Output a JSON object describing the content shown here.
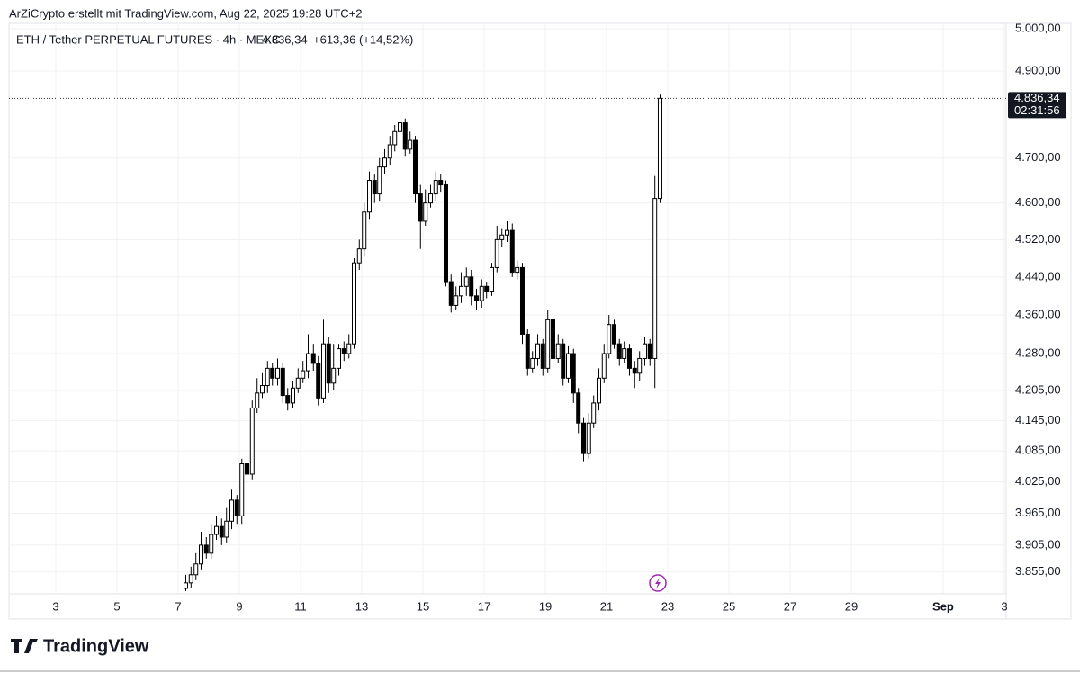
{
  "header": {
    "caption": "ArZiCrypto erstellt mit TradingView.com, Aug 22, 2025 19:28 UTC+2",
    "logo": "TradingView"
  },
  "chart_data": {
    "type": "candlestick",
    "symbol": "ETH / Tether PERPETUAL FUTURES · 4h · MEXC",
    "price_text": "4.836,34",
    "change_text": "+613,36 (+14,52%)",
    "last_price": {
      "value": 4836.34,
      "label": "4.836,34"
    },
    "countdown": "02:31:56",
    "log_scale": true,
    "grid": true,
    "up_color": "#ffffff",
    "down_color": "#000000",
    "border_color": "#000000",
    "xlim": [
      1.47,
      34.06
    ],
    "xticks": [
      3,
      5,
      7,
      9,
      11,
      13,
      15,
      17,
      19,
      21,
      23,
      25,
      27,
      29,
      {
        "value": 32,
        "label": "Sep"
      },
      {
        "value": 34,
        "label": "3"
      }
    ],
    "ylim": [
      3815,
      5011
    ],
    "yticks": [
      {
        "value": 3855,
        "label": "3.855,00"
      },
      {
        "value": 3905,
        "label": "3.905,00"
      },
      {
        "value": 3965,
        "label": "3.965,00"
      },
      {
        "value": 4025,
        "label": "4.025,00"
      },
      {
        "value": 4085,
        "label": "4.085,00"
      },
      {
        "value": 4145,
        "label": "4.145,00"
      },
      {
        "value": 4205,
        "label": "4.205,00"
      },
      {
        "value": 4280,
        "label": "4.280,00"
      },
      {
        "value": 4360,
        "label": "4.360,00"
      },
      {
        "value": 4440,
        "label": "4.440,00"
      },
      {
        "value": 4520,
        "label": "4.520,00"
      },
      {
        "value": 4600,
        "label": "4.600,00"
      },
      {
        "value": 4700,
        "label": "4.700,00"
      },
      {
        "value": 4900,
        "label": "4.900,00"
      },
      {
        "value": 5000,
        "label": "5.000,00"
      }
    ],
    "x": [
      7.25,
      7.42,
      7.58,
      7.75,
      7.92,
      8.08,
      8.25,
      8.42,
      8.58,
      8.75,
      8.92,
      9.08,
      9.25,
      9.42,
      9.58,
      9.75,
      9.92,
      10.08,
      10.25,
      10.42,
      10.58,
      10.75,
      10.92,
      11.08,
      11.25,
      11.42,
      11.58,
      11.75,
      11.92,
      12.08,
      12.25,
      12.42,
      12.58,
      12.75,
      12.92,
      13.08,
      13.25,
      13.42,
      13.58,
      13.75,
      13.92,
      14.08,
      14.25,
      14.42,
      14.58,
      14.75,
      14.92,
      15.08,
      15.25,
      15.42,
      15.58,
      15.75,
      15.92,
      16.08,
      16.25,
      16.42,
      16.58,
      16.75,
      16.92,
      17.08,
      17.25,
      17.42,
      17.58,
      17.75,
      17.92,
      18.08,
      18.25,
      18.42,
      18.58,
      18.75,
      18.92,
      19.08,
      19.25,
      19.42,
      19.58,
      19.75,
      19.92,
      20.08,
      20.25,
      20.42,
      20.58,
      20.75,
      20.92,
      21.08,
      21.25,
      21.42,
      21.58,
      21.75,
      21.92,
      22.08,
      22.25,
      22.42,
      22.58,
      22.75
    ],
    "open": [
      3825,
      3835,
      3850,
      3870,
      3905,
      3890,
      3925,
      3940,
      3920,
      3950,
      3990,
      3960,
      4060,
      4040,
      4170,
      4200,
      4215,
      4250,
      4230,
      4250,
      4195,
      4180,
      4210,
      4230,
      4245,
      4280,
      4260,
      4190,
      4300,
      4220,
      4250,
      4290,
      4280,
      4300,
      4470,
      4500,
      4580,
      4650,
      4620,
      4680,
      4700,
      4730,
      4760,
      4780,
      4720,
      4740,
      4620,
      4560,
      4600,
      4620,
      4650,
      4640,
      4430,
      4380,
      4400,
      4420,
      4440,
      4400,
      4390,
      4420,
      4410,
      4460,
      4520,
      4530,
      4540,
      4450,
      4460,
      4320,
      4250,
      4270,
      4300,
      4250,
      4350,
      4270,
      4300,
      4230,
      4280,
      4200,
      4140,
      4080,
      4140,
      4180,
      4230,
      4280,
      4340,
      4300,
      4270,
      4290,
      4250,
      4240,
      4270,
      4300,
      4270,
      4610
    ],
    "high": [
      3850,
      3865,
      3890,
      3930,
      3920,
      3945,
      3960,
      3955,
      3975,
      4010,
      4000,
      4070,
      4075,
      4185,
      4230,
      4240,
      4265,
      4260,
      4270,
      4260,
      4210,
      4225,
      4250,
      4265,
      4320,
      4300,
      4275,
      4350,
      4315,
      4300,
      4300,
      4305,
      4320,
      4480,
      4520,
      4600,
      4670,
      4665,
      4700,
      4720,
      4750,
      4775,
      4795,
      4790,
      4760,
      4750,
      4640,
      4630,
      4640,
      4670,
      4665,
      4650,
      4445,
      4420,
      4450,
      4460,
      4455,
      4415,
      4435,
      4430,
      4470,
      4550,
      4545,
      4560,
      4555,
      4475,
      4470,
      4330,
      4285,
      4320,
      4310,
      4370,
      4360,
      4320,
      4310,
      4295,
      4290,
      4210,
      4150,
      4160,
      4195,
      4250,
      4300,
      4360,
      4350,
      4310,
      4305,
      4300,
      4265,
      4285,
      4315,
      4310,
      4660,
      4845
    ],
    "low": [
      3820,
      3825,
      3840,
      3860,
      3880,
      3880,
      3915,
      3905,
      3910,
      3935,
      3945,
      3945,
      4025,
      4030,
      4160,
      4190,
      4200,
      4215,
      4215,
      4180,
      4165,
      4170,
      4200,
      4220,
      4230,
      4245,
      4175,
      4180,
      4200,
      4205,
      4235,
      4265,
      4270,
      4290,
      4455,
      4485,
      4565,
      4600,
      4605,
      4665,
      4685,
      4715,
      4745,
      4705,
      4710,
      4600,
      4500,
      4550,
      4590,
      4605,
      4625,
      4420,
      4365,
      4370,
      4385,
      4400,
      4380,
      4370,
      4375,
      4395,
      4400,
      4450,
      4505,
      4515,
      4440,
      4435,
      4300,
      4235,
      4240,
      4255,
      4235,
      4240,
      4255,
      4260,
      4215,
      4220,
      4180,
      4120,
      4065,
      4070,
      4130,
      4165,
      4220,
      4270,
      4290,
      4255,
      4260,
      4235,
      4210,
      4225,
      4255,
      4255,
      4210,
      4600
    ],
    "close": [
      3835,
      3850,
      3870,
      3905,
      3890,
      3925,
      3940,
      3920,
      3950,
      3990,
      3960,
      4060,
      4040,
      4170,
      4200,
      4215,
      4250,
      4230,
      4250,
      4195,
      4180,
      4210,
      4230,
      4245,
      4280,
      4260,
      4190,
      4300,
      4220,
      4250,
      4290,
      4280,
      4300,
      4470,
      4500,
      4580,
      4650,
      4620,
      4680,
      4700,
      4730,
      4760,
      4780,
      4720,
      4740,
      4620,
      4560,
      4600,
      4620,
      4650,
      4640,
      4430,
      4380,
      4400,
      4420,
      4440,
      4400,
      4390,
      4420,
      4410,
      4460,
      4520,
      4530,
      4540,
      4450,
      4460,
      4320,
      4250,
      4270,
      4300,
      4250,
      4350,
      4270,
      4300,
      4230,
      4280,
      4200,
      4140,
      4080,
      4140,
      4180,
      4230,
      4280,
      4340,
      4300,
      4270,
      4290,
      4250,
      4240,
      4270,
      4300,
      4270,
      4610,
      4836.34
    ]
  }
}
